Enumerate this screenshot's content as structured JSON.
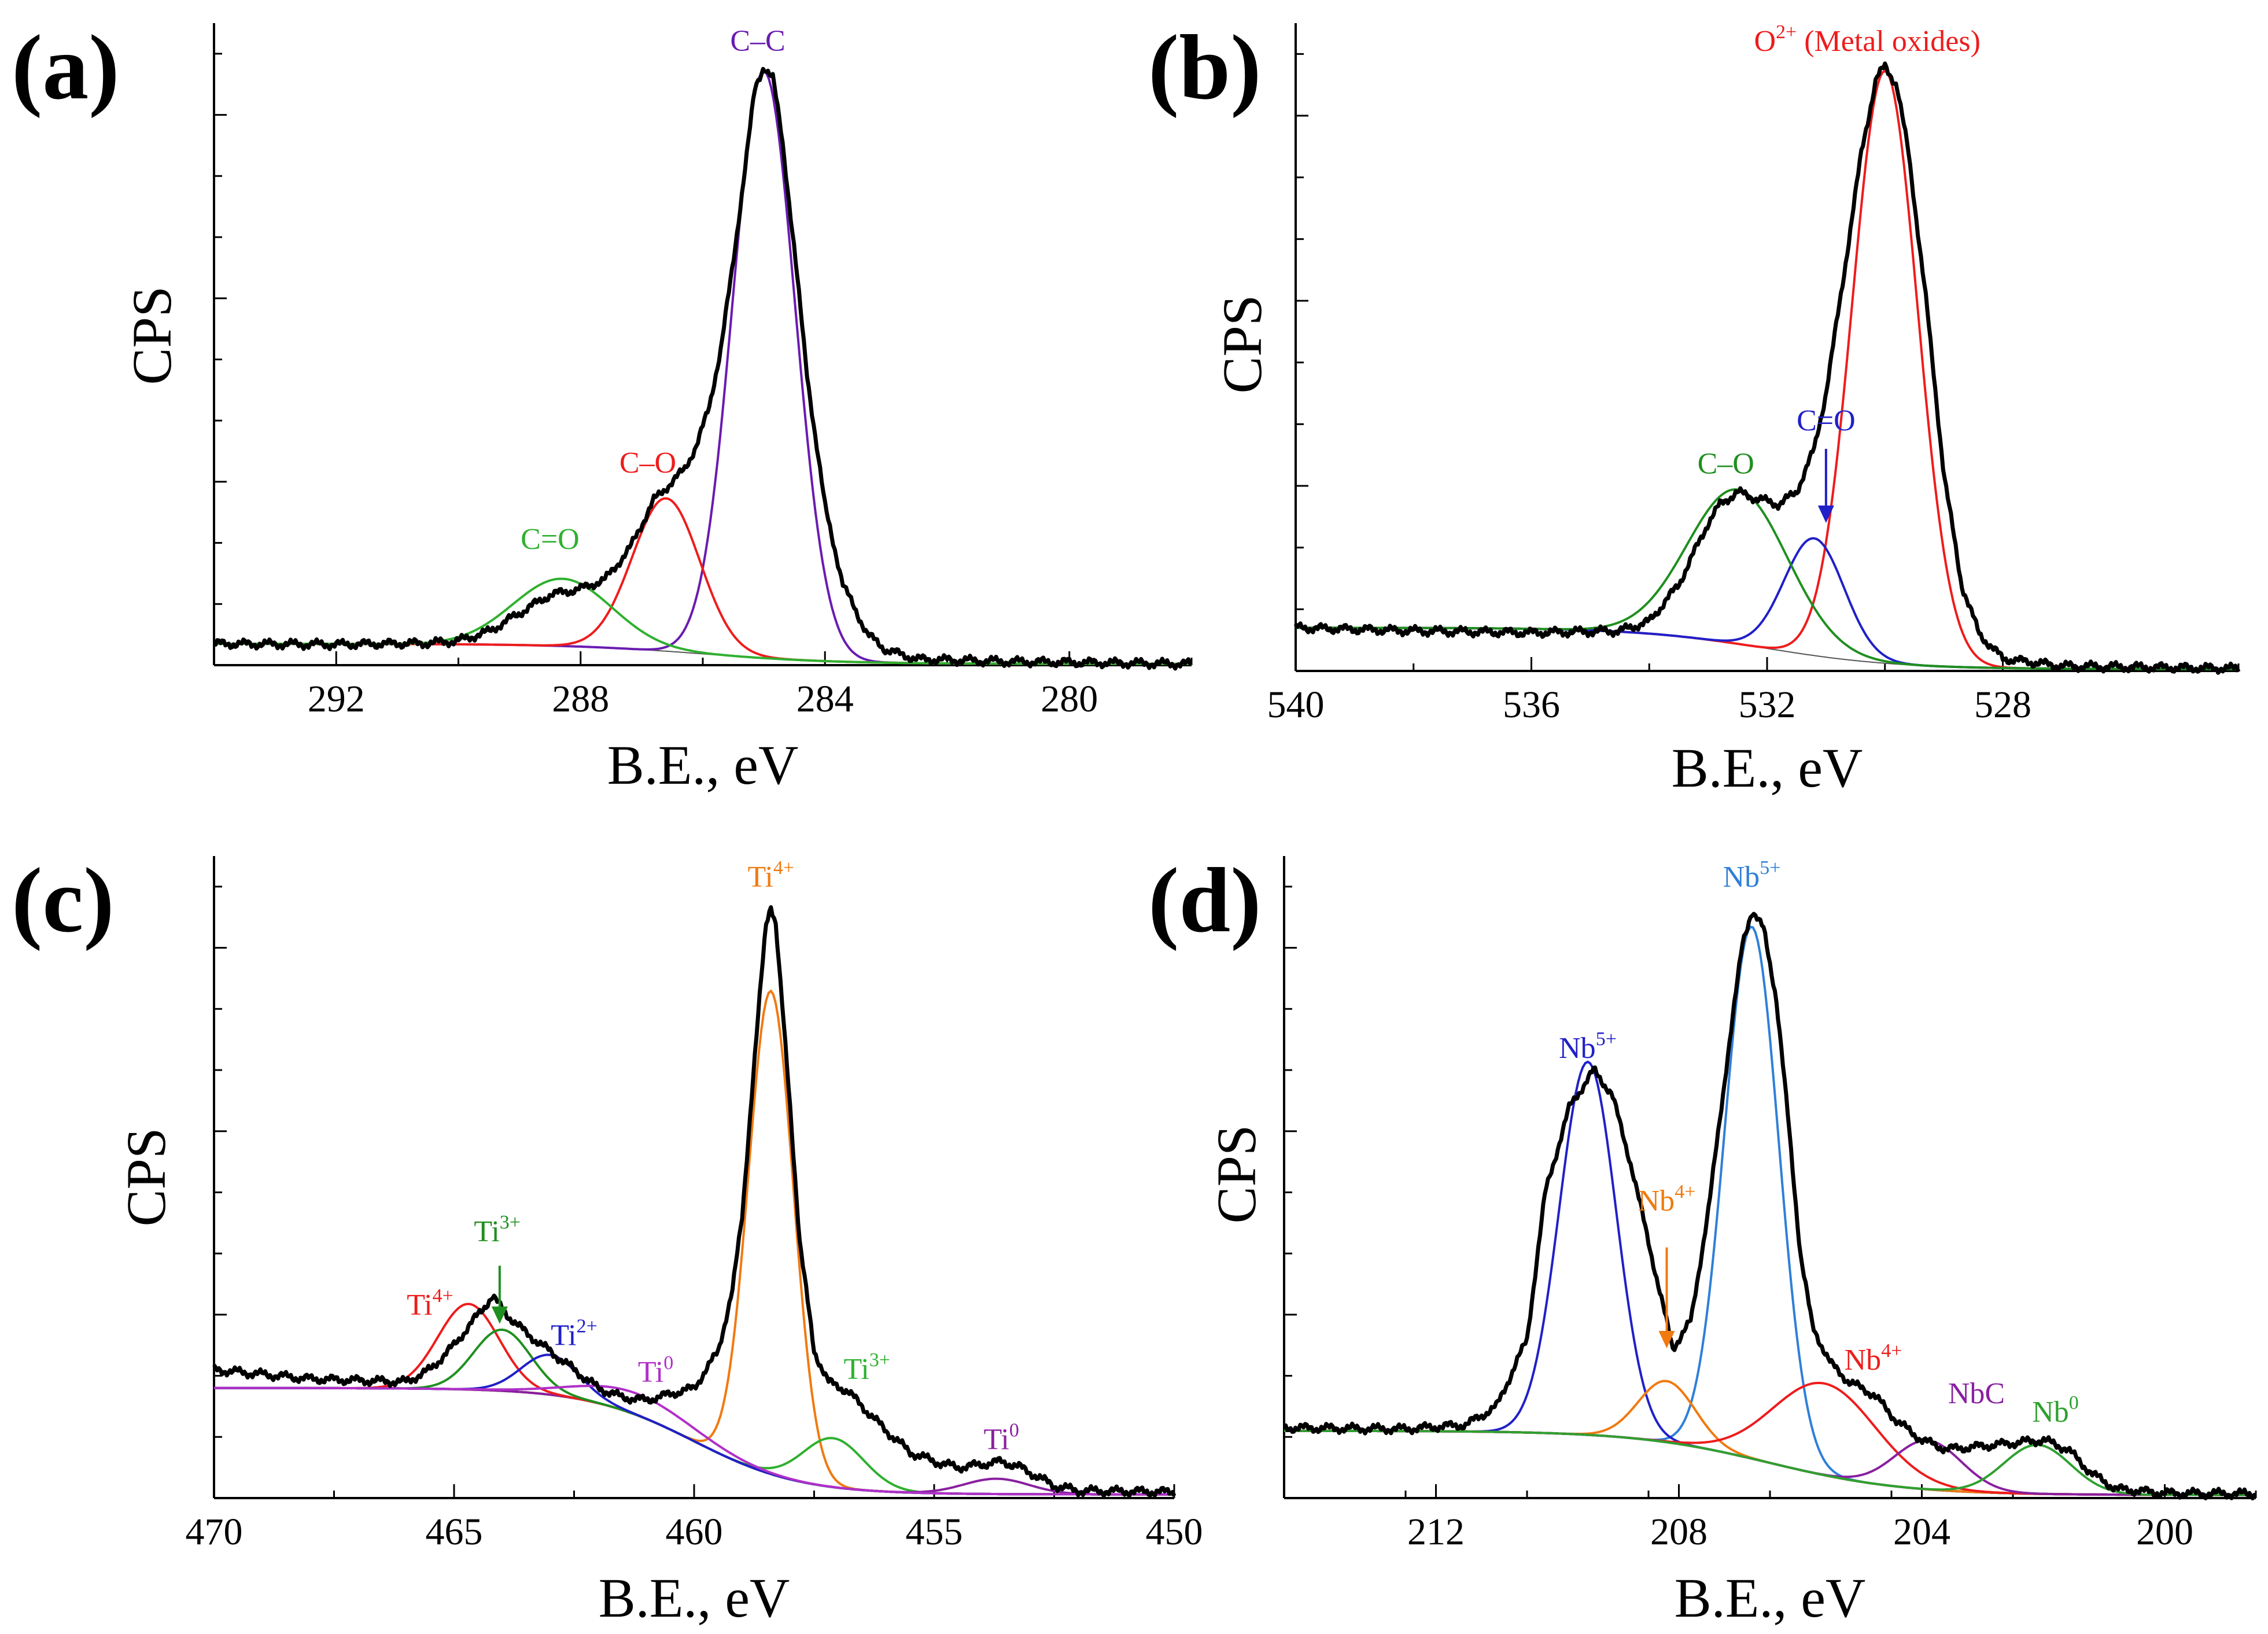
{
  "chart_data": [
    {
      "id": "a",
      "type": "line",
      "panel_label": "(a)",
      "xlabel": "B.E., eV",
      "ylabel": "CPS",
      "xlim": [
        294,
        278
      ],
      "ylim": [
        0,
        105
      ],
      "xticks": [
        292,
        288,
        284,
        280
      ],
      "baseline": {
        "left": 3.5,
        "right": 0.2
      },
      "measured": {
        "color": "#000000",
        "points": [
          [
            294,
            3.5
          ],
          [
            292,
            3.4
          ],
          [
            290.5,
            3.6
          ],
          [
            290,
            4.0
          ],
          [
            289.5,
            5.5
          ],
          [
            289,
            8.5
          ],
          [
            288.5,
            11.5
          ],
          [
            288,
            12.5
          ],
          [
            287.6,
            14
          ],
          [
            287.2,
            19
          ],
          [
            287,
            23
          ],
          [
            286.8,
            27
          ],
          [
            286.5,
            30
          ],
          [
            286.3,
            32
          ],
          [
            286.1,
            36
          ],
          [
            285.9,
            42
          ],
          [
            285.7,
            52
          ],
          [
            285.5,
            66
          ],
          [
            285.3,
            82
          ],
          [
            285.15,
            94
          ],
          [
            285,
            98
          ],
          [
            284.85,
            96
          ],
          [
            284.7,
            86
          ],
          [
            284.5,
            68
          ],
          [
            284.3,
            48
          ],
          [
            284,
            26
          ],
          [
            283.7,
            13
          ],
          [
            283.3,
            5
          ],
          [
            283,
            2.5
          ],
          [
            282.5,
            1
          ],
          [
            281,
            0.6
          ],
          [
            278,
            0.2
          ]
        ]
      },
      "components": [
        {
          "label": "C–C",
          "center": 285,
          "height": 96,
          "fwhm": 1.2,
          "color": "#6a1bb0"
        },
        {
          "label": "C–O",
          "center": 286.6,
          "height": 25,
          "fwhm": 1.3,
          "color": "#ee1c1c"
        },
        {
          "label": "C=O",
          "center": 288.3,
          "height": 11,
          "fwhm": 1.9,
          "color": "#2fb02f"
        }
      ],
      "annotations": [
        {
          "text": "C–C",
          "sup": "",
          "color": "#6a1bb0",
          "x": 285.1,
          "y": 100.5,
          "anchor": "middle"
        },
        {
          "text": "C–O",
          "sup": "",
          "color": "#ee1c1c",
          "x": 286.9,
          "y": 31.5,
          "anchor": "middle"
        },
        {
          "text": "C=O",
          "sup": "",
          "color": "#2fb02f",
          "x": 288.5,
          "y": 19,
          "anchor": "middle"
        }
      ]
    },
    {
      "id": "b",
      "type": "line",
      "panel_label": "(b)",
      "xlabel": "B.E., eV",
      "ylabel": "CPS",
      "xlim": [
        540,
        524
      ],
      "ylim": [
        0,
        105
      ],
      "xticks": [
        540,
        536,
        532,
        528
      ],
      "baseline": {
        "left": 7.0,
        "right": 0.3
      },
      "measured": {
        "color": "#000000",
        "points": [
          [
            540,
            7
          ],
          [
            538,
            6.5
          ],
          [
            536,
            6.2
          ],
          [
            534.5,
            6.5
          ],
          [
            534,
            8
          ],
          [
            533.5,
            14
          ],
          [
            533.2,
            20
          ],
          [
            533,
            24
          ],
          [
            532.8,
            27
          ],
          [
            532.5,
            29
          ],
          [
            532.2,
            28
          ],
          [
            531.8,
            27
          ],
          [
            531.5,
            29
          ],
          [
            531.2,
            36
          ],
          [
            531,
            45
          ],
          [
            530.7,
            64
          ],
          [
            530.4,
            84
          ],
          [
            530.15,
            96
          ],
          [
            530,
            98
          ],
          [
            529.8,
            95
          ],
          [
            529.6,
            84
          ],
          [
            529.3,
            60
          ],
          [
            529,
            32
          ],
          [
            528.7,
            14
          ],
          [
            528.4,
            6
          ],
          [
            528,
            2
          ],
          [
            527,
            0.8
          ],
          [
            524,
            0.4
          ]
        ]
      },
      "components": [
        {
          "label": "O2+",
          "center": 530,
          "height": 96,
          "fwhm": 1.3,
          "color": "#ee1c1c"
        },
        {
          "label": "C=O",
          "center": 531.2,
          "height": 19,
          "fwhm": 1.2,
          "color": "#2020c8"
        },
        {
          "label": "C–O",
          "center": 532.5,
          "height": 25,
          "fwhm": 2.0,
          "color": "#1f8f1f"
        }
      ],
      "annotations": [
        {
          "text": "O",
          "sup": "2+",
          "after": " (Metal oxides)",
          "color": "#ee1c1c",
          "x": 530.3,
          "y": 100.5,
          "anchor": "middle"
        },
        {
          "text": "C=O",
          "sup": "",
          "color": "#2020c8",
          "x": 531.0,
          "y": 39,
          "anchor": "middle"
        },
        {
          "text": "C–O",
          "sup": "",
          "color": "#1f8f1f",
          "x": 532.7,
          "y": 32,
          "anchor": "middle"
        }
      ],
      "arrows": [
        {
          "color": "#2020c8",
          "x": 531.0,
          "y_from": 36,
          "y_to": 24
        }
      ]
    },
    {
      "id": "c",
      "type": "line",
      "panel_label": "(c)",
      "xlabel": "B.E., eV",
      "ylabel": "CPS",
      "xlim": [
        470,
        450
      ],
      "ylim": [
        0,
        105
      ],
      "xticks": [
        470,
        465,
        460,
        455,
        450
      ],
      "baseline": {
        "left": 18.0,
        "right": 0.6
      },
      "measured": {
        "color": "#000000",
        "points": [
          [
            470,
            21
          ],
          [
            468,
            19.5
          ],
          [
            466,
            19
          ],
          [
            465.5,
            21
          ],
          [
            465,
            25
          ],
          [
            464.5,
            30
          ],
          [
            464.2,
            33
          ],
          [
            463.9,
            30
          ],
          [
            463.5,
            27
          ],
          [
            463,
            24
          ],
          [
            462.5,
            21
          ],
          [
            462,
            18
          ],
          [
            461.5,
            16.5
          ],
          [
            461,
            16
          ],
          [
            460.5,
            17
          ],
          [
            460,
            18
          ],
          [
            459.5,
            24
          ],
          [
            459.2,
            34
          ],
          [
            459,
            46
          ],
          [
            458.8,
            66
          ],
          [
            458.6,
            85
          ],
          [
            458.5,
            94
          ],
          [
            458.4,
            97
          ],
          [
            458.3,
            94
          ],
          [
            458.2,
            84
          ],
          [
            458,
            64
          ],
          [
            457.8,
            42
          ],
          [
            457.5,
            24
          ],
          [
            457.2,
            19
          ],
          [
            456.8,
            17.5
          ],
          [
            456.5,
            15
          ],
          [
            456,
            11
          ],
          [
            455.5,
            7.5
          ],
          [
            455,
            6
          ],
          [
            454.5,
            5
          ],
          [
            454,
            5.5
          ],
          [
            453.6,
            6
          ],
          [
            453.2,
            5
          ],
          [
            452.5,
            2
          ],
          [
            452,
            1.2
          ],
          [
            450,
            1
          ]
        ]
      },
      "components": [
        {
          "label": "Ti4+",
          "center": 458.4,
          "height": 79,
          "fwhm": 1.1,
          "color": "#f07a10"
        },
        {
          "label": "Ti3+",
          "center": 457.1,
          "height": 8,
          "fwhm": 1.5,
          "color": "#2fb02f"
        },
        {
          "label": "Ti0",
          "center": 453.7,
          "height": 2.5,
          "fwhm": 1.6,
          "color": "#8a1fa0"
        },
        {
          "label": "Ti4+",
          "center": 464.7,
          "height": 14,
          "fwhm": 1.5,
          "color": "#ee1c1c"
        },
        {
          "label": "Ti3+",
          "center": 464.0,
          "height": 10,
          "fwhm": 1.4,
          "color": "#1f8f1f"
        },
        {
          "label": "Ti2+",
          "center": 463.0,
          "height": 6.5,
          "fwhm": 1.4,
          "color": "#2020c8"
        },
        {
          "label": "Ti0",
          "center": 461.2,
          "height": 3.5,
          "fwhm": 2.8,
          "color": "#b030c8"
        }
      ],
      "annotations": [
        {
          "text": "Ti",
          "sup": "4+",
          "color": "#f07a10",
          "x": 458.4,
          "y": 100,
          "anchor": "middle"
        },
        {
          "text": "Ti",
          "sup": "3+",
          "color": "#2fb02f",
          "x": 456.4,
          "y": 19.5,
          "anchor": "middle"
        },
        {
          "text": "Ti",
          "sup": "0",
          "color": "#8a1fa0",
          "x": 453.6,
          "y": 8,
          "anchor": "middle"
        },
        {
          "text": "Ti",
          "sup": "4+",
          "color": "#ee1c1c",
          "x": 465.5,
          "y": 30,
          "anchor": "middle"
        },
        {
          "text": "Ti",
          "sup": "3+",
          "color": "#1f8f1f",
          "x": 464.1,
          "y": 42,
          "anchor": "middle"
        },
        {
          "text": "Ti",
          "sup": "2+",
          "color": "#2020c8",
          "x": 462.5,
          "y": 25,
          "anchor": "middle"
        },
        {
          "text": "Ti",
          "sup": "0",
          "color": "#b030c8",
          "x": 460.8,
          "y": 19,
          "anchor": "middle"
        }
      ],
      "arrows": [
        {
          "color": "#1f8f1f",
          "x": 464.05,
          "y_from": 38,
          "y_to": 28.5
        }
      ]
    },
    {
      "id": "d",
      "type": "line",
      "panel_label": "(d)",
      "xlabel": "B.E., eV",
      "ylabel": "CPS",
      "xlim": [
        214.5,
        198.5
      ],
      "ylim": [
        0,
        105
      ],
      "xticks": [
        212,
        208,
        204,
        200
      ],
      "baseline": {
        "left": 11.0,
        "right": 0.5
      },
      "measured": {
        "color": "#000000",
        "points": [
          [
            214.5,
            11.5
          ],
          [
            212.5,
            11.3
          ],
          [
            211.5,
            12
          ],
          [
            211,
            15
          ],
          [
            210.5,
            26
          ],
          [
            210.2,
            50
          ],
          [
            209.8,
            64
          ],
          [
            209.4,
            70
          ],
          [
            209.1,
            66
          ],
          [
            208.8,
            55
          ],
          [
            208.5,
            42
          ],
          [
            208.3,
            33
          ],
          [
            208.1,
            24.5
          ],
          [
            207.8,
            29
          ],
          [
            207.5,
            48
          ],
          [
            207.2,
            72
          ],
          [
            206.95,
            91
          ],
          [
            206.8,
            96
          ],
          [
            206.6,
            93
          ],
          [
            206.4,
            82
          ],
          [
            206.2,
            62
          ],
          [
            206,
            40
          ],
          [
            205.8,
            28
          ],
          [
            205.5,
            22
          ],
          [
            205.2,
            19
          ],
          [
            204.8,
            17
          ],
          [
            204.4,
            12.5
          ],
          [
            204,
            9.5
          ],
          [
            203.6,
            8
          ],
          [
            203.2,
            8.3
          ],
          [
            202.5,
            9
          ],
          [
            202,
            9.5
          ],
          [
            201.6,
            8
          ],
          [
            201.2,
            4
          ],
          [
            200.8,
            1.5
          ],
          [
            200,
            0.8
          ],
          [
            198.5,
            0.7
          ]
        ]
      },
      "components": [
        {
          "label": "Nb5+",
          "center": 206.8,
          "height": 87,
          "fwhm": 1.05,
          "color": "#2f7fd8"
        },
        {
          "label": "Nb5+",
          "center": 209.5,
          "height": 61,
          "fwhm": 1.1,
          "color": "#2020c8"
        },
        {
          "label": "Nb4+",
          "center": 208.2,
          "height": 10,
          "fwhm": 1.1,
          "color": "#f07a10"
        },
        {
          "label": "Nb4+",
          "center": 205.6,
          "height": 15,
          "fwhm": 2.0,
          "color": "#ee1c1c"
        },
        {
          "label": "NbC",
          "center": 203.9,
          "height": 8,
          "fwhm": 1.3,
          "color": "#8a1fa0"
        },
        {
          "label": "Nb0",
          "center": 202.1,
          "height": 8,
          "fwhm": 1.3,
          "color": "#2fa02f"
        }
      ],
      "annotations": [
        {
          "text": "Nb",
          "sup": "5+",
          "color": "#2f7fd8",
          "x": 206.8,
          "y": 100,
          "anchor": "middle"
        },
        {
          "text": "Nb",
          "sup": "5+",
          "color": "#2020c8",
          "x": 209.5,
          "y": 72,
          "anchor": "middle"
        },
        {
          "text": "Nb",
          "sup": "4+",
          "color": "#f07a10",
          "x": 208.2,
          "y": 47,
          "anchor": "middle"
        },
        {
          "text": "Nb",
          "sup": "4+",
          "color": "#ee1c1c",
          "x": 204.8,
          "y": 21,
          "anchor": "middle"
        },
        {
          "text": "NbC",
          "sup": "",
          "color": "#8a1fa0",
          "x": 203.1,
          "y": 15.5,
          "anchor": "middle"
        },
        {
          "text": "Nb",
          "sup": "0",
          "color": "#2fa02f",
          "x": 201.8,
          "y": 12.5,
          "anchor": "middle"
        }
      ],
      "arrows": [
        {
          "color": "#f07a10",
          "x": 208.2,
          "y_from": 41,
          "y_to": 24.5
        }
      ]
    }
  ]
}
